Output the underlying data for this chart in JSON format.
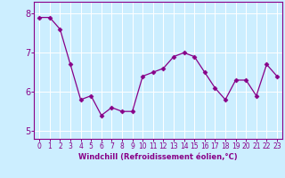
{
  "x": [
    0,
    1,
    2,
    3,
    4,
    5,
    6,
    7,
    8,
    9,
    10,
    11,
    12,
    13,
    14,
    15,
    16,
    17,
    18,
    19,
    20,
    21,
    22,
    23
  ],
  "y": [
    7.9,
    7.9,
    7.6,
    6.7,
    5.8,
    5.9,
    5.4,
    5.6,
    5.5,
    5.5,
    6.4,
    6.5,
    6.6,
    6.9,
    7.0,
    6.9,
    6.5,
    6.1,
    5.8,
    6.3,
    6.3,
    5.9,
    6.7,
    6.4
  ],
  "line_color": "#880088",
  "marker": "D",
  "marker_size": 2.5,
  "bg_color": "#cceeff",
  "xlabel": "Windchill (Refroidissement éolien,°C)",
  "xlabel_color": "#880088",
  "ylim": [
    4.8,
    8.3
  ],
  "xlim": [
    -0.5,
    23.5
  ],
  "yticks": [
    5,
    6,
    7,
    8
  ],
  "xticks": [
    0,
    1,
    2,
    3,
    4,
    5,
    6,
    7,
    8,
    9,
    10,
    11,
    12,
    13,
    14,
    15,
    16,
    17,
    18,
    19,
    20,
    21,
    22,
    23
  ],
  "grid_color": "#ffffff",
  "tick_color": "#880088",
  "spine_color": "#880088",
  "tick_fontsize": 5.5,
  "xlabel_fontsize": 6.0
}
